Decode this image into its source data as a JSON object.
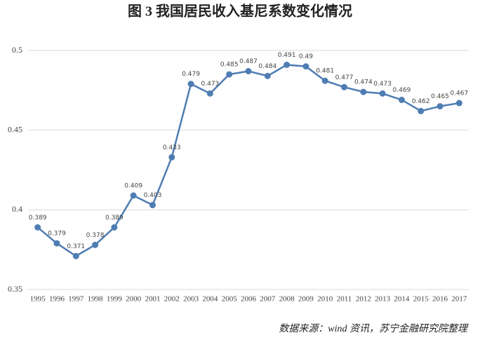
{
  "chart_data": {
    "type": "line",
    "title": "图 3  我国居民收入基尼系数变化情况",
    "source": "数据来源：wind 资讯，苏宁金融研究院整理",
    "categories": [
      "1995",
      "1996",
      "1997",
      "1998",
      "1999",
      "2000",
      "2001",
      "2002",
      "2003",
      "2004",
      "2005",
      "2006",
      "2007",
      "2008",
      "2009",
      "2010",
      "2011",
      "2012",
      "2013",
      "2014",
      "2015",
      "2016",
      "2017"
    ],
    "values": [
      0.389,
      0.379,
      0.371,
      0.378,
      0.389,
      0.409,
      0.403,
      0.433,
      0.479,
      0.473,
      0.485,
      0.487,
      0.484,
      0.491,
      0.49,
      0.481,
      0.477,
      0.474,
      0.473,
      0.469,
      0.462,
      0.465,
      0.467
    ],
    "color": "#4f7db3",
    "ylim": [
      0.35,
      0.5
    ],
    "yticks": [
      0.35,
      0.4,
      0.45,
      0.5
    ],
    "grid": true
  }
}
